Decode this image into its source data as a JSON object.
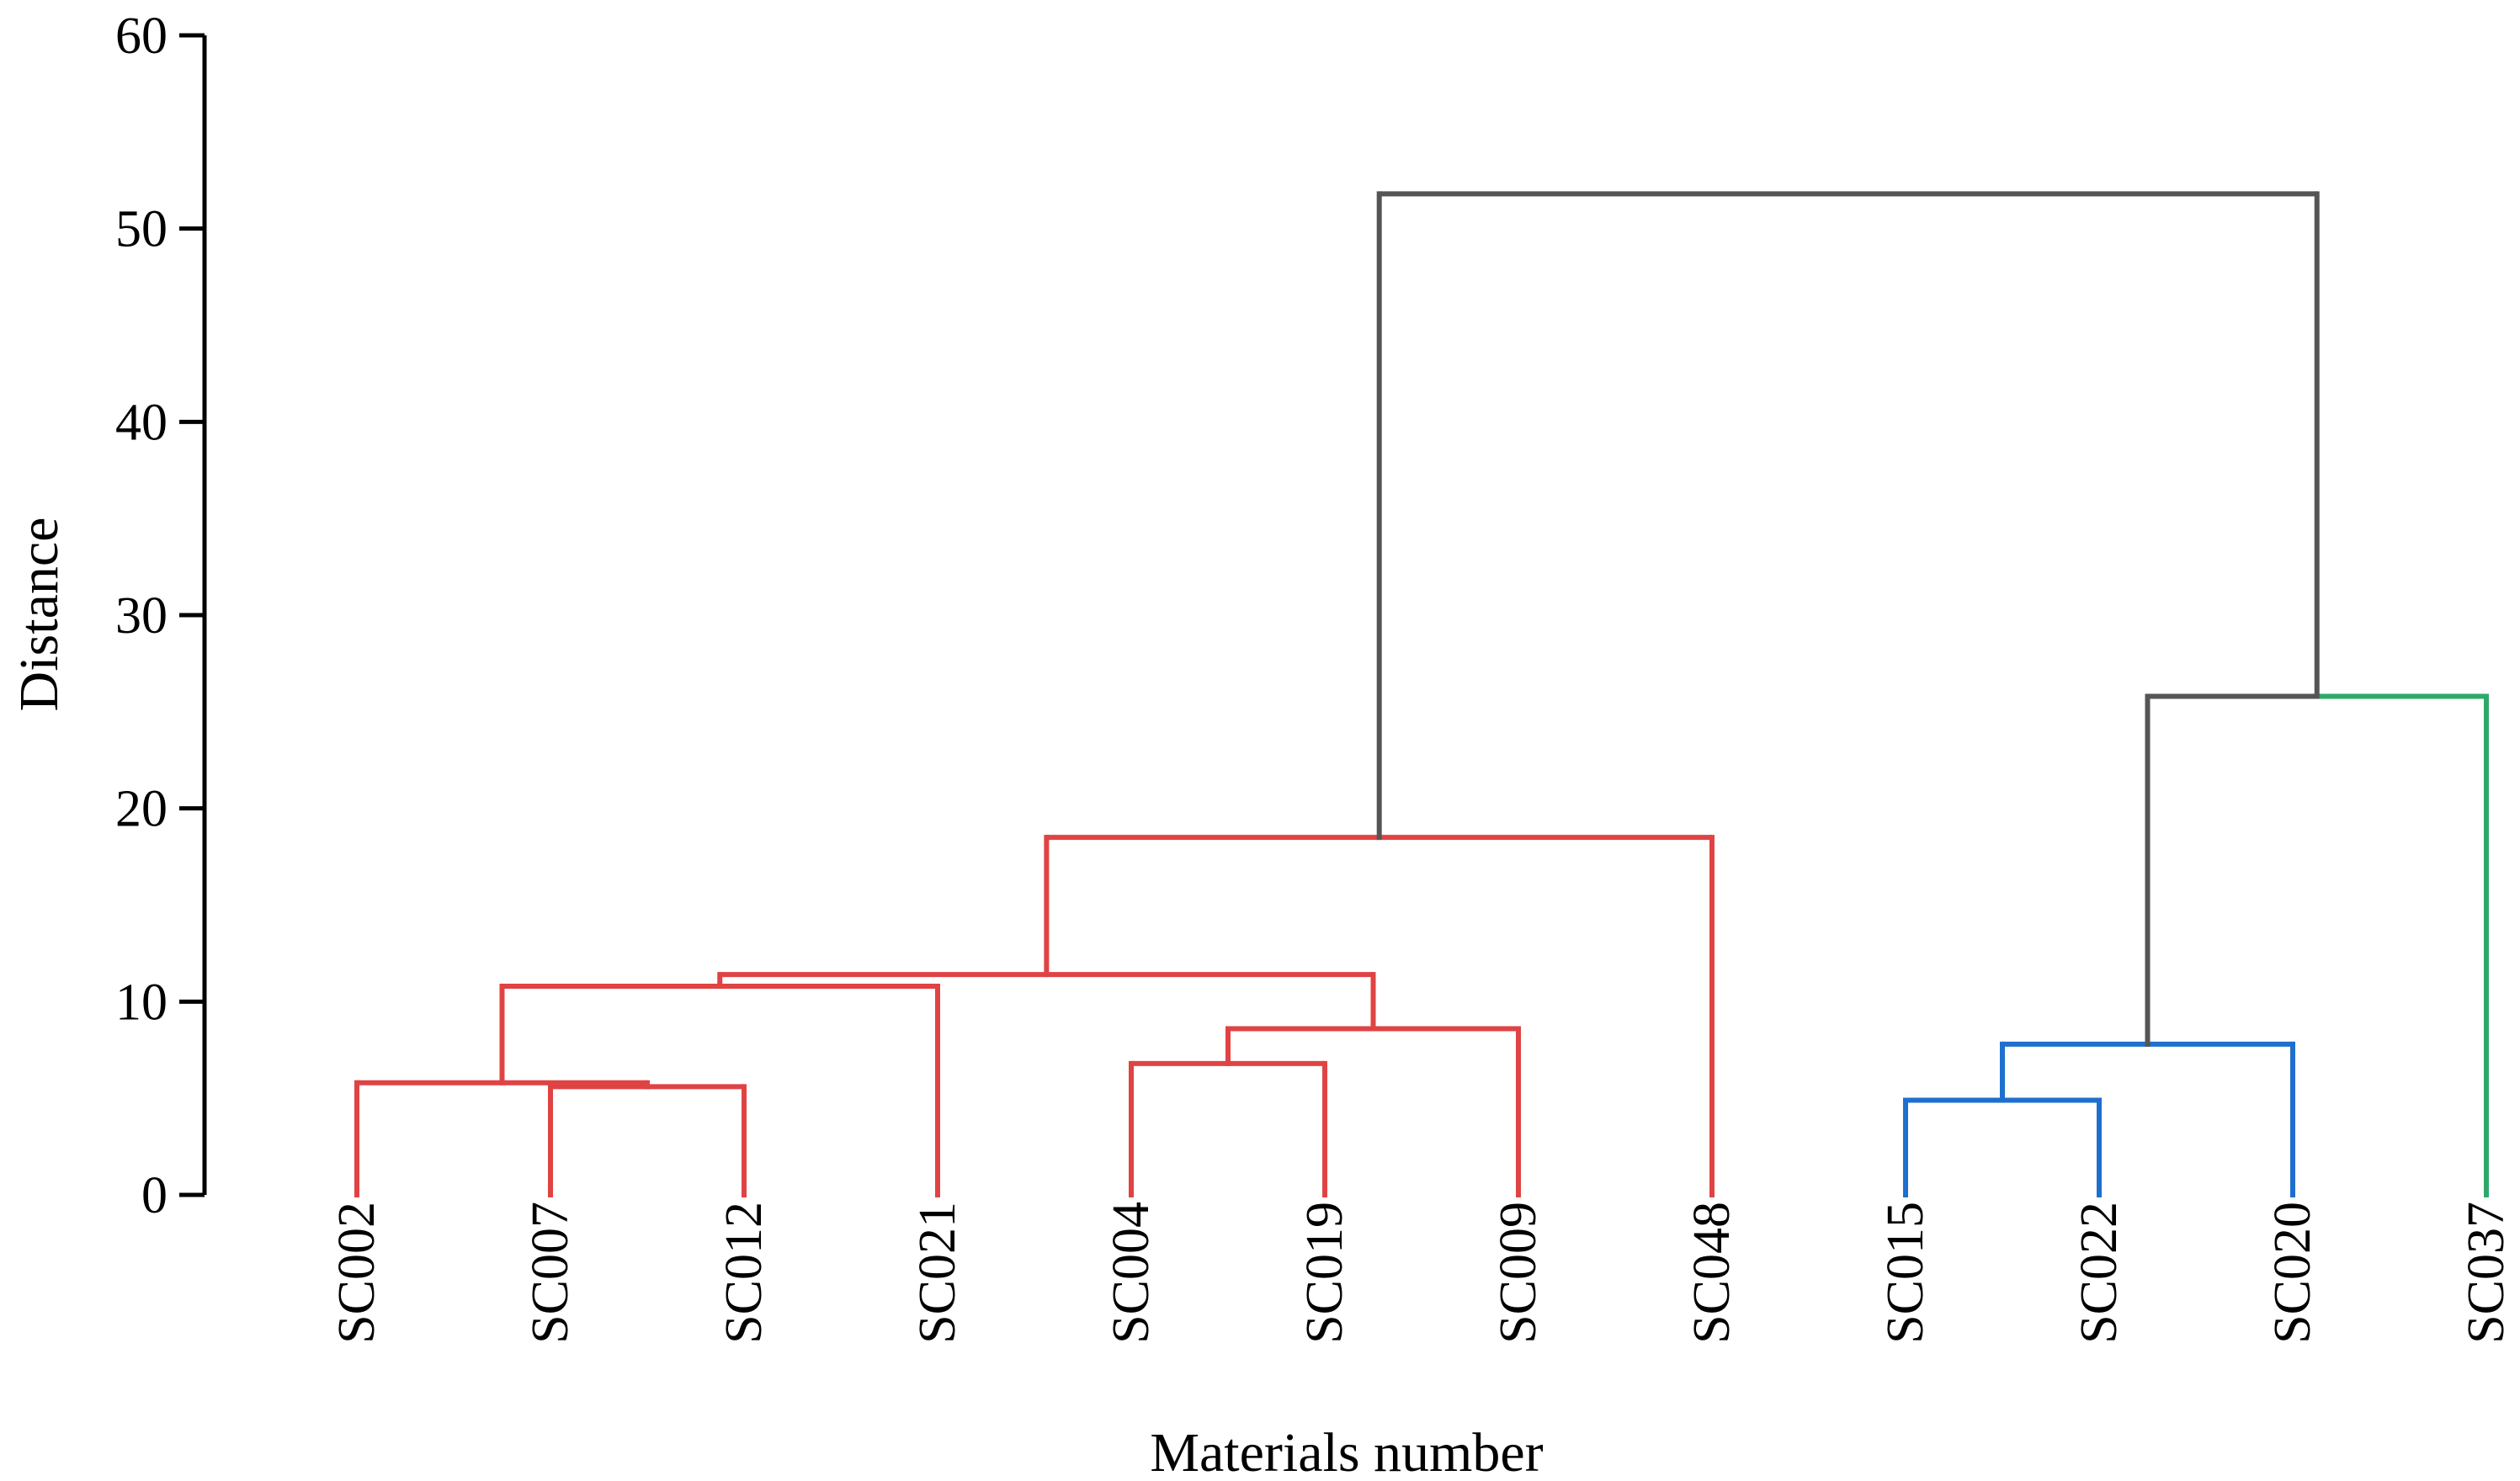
{
  "chart_data": {
    "type": "dendrogram",
    "title": "",
    "xlabel": "Materials number",
    "ylabel": "Distance",
    "ylim": [
      0,
      60
    ],
    "yticks": [
      "0",
      "10",
      "20",
      "30",
      "40",
      "50",
      "60"
    ],
    "leaves": [
      "SC002",
      "SC007",
      "SC012",
      "SC021",
      "SC004",
      "SC019",
      "SC009",
      "SC048",
      "SC015",
      "SC022",
      "SC020",
      "SC037"
    ],
    "colors": {
      "red_cluster": "#e04343",
      "blue_cluster": "#1f6fcf",
      "green_cluster": "#2ea86a",
      "link": "#555555",
      "axis": "#000000"
    },
    "merges": [
      {
        "id": "m1",
        "left": "SC007",
        "right": "SC012",
        "height": 5.6,
        "color": "red_cluster"
      },
      {
        "id": "m2",
        "left": "SC002",
        "right": "m1",
        "height": 5.8,
        "color": "red_cluster"
      },
      {
        "id": "m3",
        "left": "m2",
        "right": "SC021",
        "height": 10.8,
        "color": "red_cluster"
      },
      {
        "id": "m4",
        "left": "SC004",
        "right": "SC019",
        "height": 6.8,
        "color": "red_cluster"
      },
      {
        "id": "m5",
        "left": "m4",
        "right": "SC009",
        "height": 8.6,
        "color": "red_cluster"
      },
      {
        "id": "m6",
        "left": "m3",
        "right": "m5",
        "height": 11.4,
        "color": "red_cluster"
      },
      {
        "id": "m7",
        "left": "m6",
        "right": "SC048",
        "height": 18.5,
        "color": "red_cluster"
      },
      {
        "id": "m8",
        "left": "SC015",
        "right": "SC022",
        "height": 4.9,
        "color": "blue_cluster"
      },
      {
        "id": "m9",
        "left": "m8",
        "right": "SC020",
        "height": 7.8,
        "color": "blue_cluster"
      },
      {
        "id": "m10",
        "left": "m9",
        "right": "SC037",
        "height": 25.8,
        "color": "link",
        "right_color": "green_cluster"
      },
      {
        "id": "m11",
        "left": "m7",
        "right": "m10",
        "height": 51.8,
        "color": "link"
      }
    ]
  }
}
